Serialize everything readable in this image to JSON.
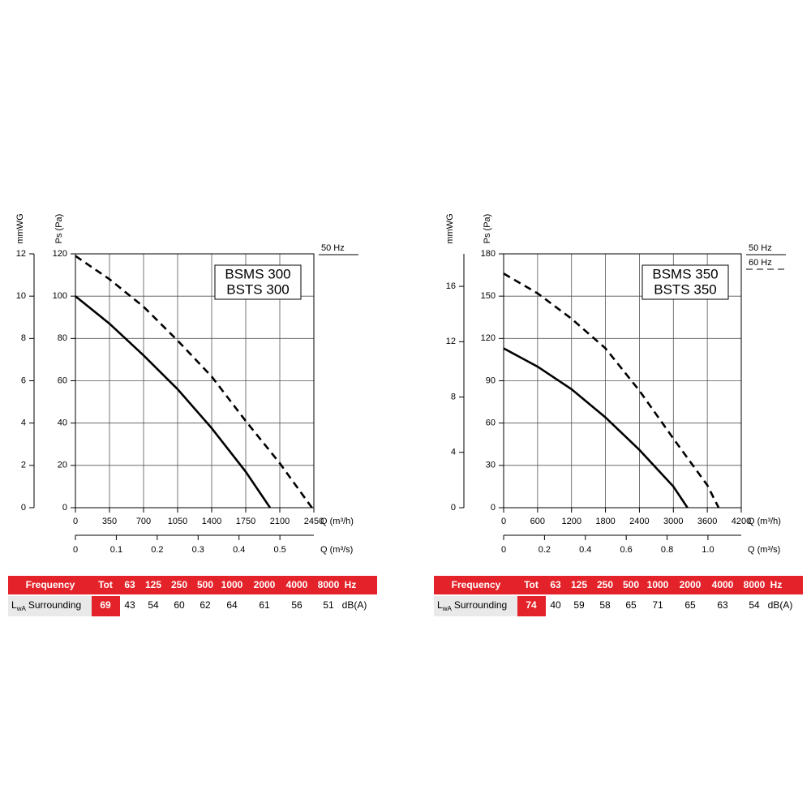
{
  "chart_data": [
    {
      "type": "line",
      "model_labels": [
        "BSMS 300",
        "BSTS 300"
      ],
      "y_label": "Ps (Pa)",
      "y2_label": "mmWG",
      "x_label": "Q (m³/h)",
      "x2_label": "Q (m³/s)",
      "xlim": [
        0,
        2450
      ],
      "xticks": [
        0,
        350,
        700,
        1050,
        1400,
        1750,
        2100,
        2450
      ],
      "x2lim": [
        0,
        0.583
      ],
      "x2ticks": [
        0,
        0.1,
        0.2,
        0.3,
        0.4,
        0.5
      ],
      "ylim": [
        0,
        120
      ],
      "yticks": [
        0,
        20,
        40,
        60,
        80,
        100,
        120
      ],
      "y2lim": [
        0,
        12
      ],
      "y2ticks": [
        0,
        2,
        4,
        6,
        8,
        10,
        12
      ],
      "grid": true,
      "series": [
        {
          "name": "50 Hz",
          "color": "#000000",
          "dash": "solid",
          "x": [
            0,
            350,
            700,
            1050,
            1400,
            1750,
            2000
          ],
          "values": [
            100,
            87,
            72,
            56,
            37.6,
            17,
            0
          ]
        },
        {
          "color": "#000000",
          "dash": "dashed",
          "x": [
            0,
            350,
            700,
            1050,
            1400,
            1750,
            2100,
            2430
          ],
          "values": [
            119,
            108,
            95,
            79,
            62,
            41,
            21,
            0
          ]
        }
      ],
      "table": {
        "header": [
          "Frequency",
          "Tot",
          "63",
          "125",
          "250",
          "500",
          "1000",
          "2000",
          "4000",
          "8000",
          "Hz"
        ],
        "label_main": "L",
        "label_sub": "wA",
        "label_text": "Surrounding",
        "total": 69,
        "values": [
          43,
          54,
          60,
          62,
          64,
          61,
          56,
          51
        ],
        "unit": "dB(A)"
      }
    },
    {
      "type": "line",
      "model_labels": [
        "BSMS 350",
        "BSTS 350"
      ],
      "y_label": "Ps (Pa)",
      "y2_label": "mmWG",
      "x_label": "Q (m³/h)",
      "x2_label": "Q (m³/s)",
      "xlim": [
        0,
        4200
      ],
      "xticks": [
        0,
        600,
        1200,
        1800,
        2400,
        3000,
        3600,
        4200
      ],
      "x2lim": [
        0,
        1.163
      ],
      "x2ticks": [
        0,
        0.2,
        0.4,
        0.6,
        0.8,
        {
          "value": 1.0,
          "label": "1.0"
        }
      ],
      "ylim": [
        0,
        180
      ],
      "yticks": [
        0,
        30,
        60,
        90,
        120,
        150,
        180
      ],
      "y2lim": [
        0,
        18.35
      ],
      "y2ticks": [
        0,
        4,
        8,
        12,
        16
      ],
      "grid": true,
      "series": [
        {
          "name": "50 Hz",
          "color": "#000000",
          "dash": "solid",
          "x": [
            0,
            600,
            1200,
            1800,
            2400,
            3000,
            3250
          ],
          "values": [
            113,
            100,
            84,
            64,
            41,
            15,
            0
          ]
        },
        {
          "name": "60 Hz",
          "color": "#000000",
          "dash": "dashed",
          "x": [
            0,
            600,
            1200,
            1800,
            2400,
            3000,
            3600,
            3800
          ],
          "values": [
            166,
            152,
            134,
            113,
            83,
            49,
            16,
            0
          ]
        }
      ],
      "table": {
        "header": [
          "Frequency",
          "Tot",
          "63",
          "125",
          "250",
          "500",
          "1000",
          "2000",
          "4000",
          "8000",
          "Hz"
        ],
        "label_main": "L",
        "label_sub": "wA",
        "label_text": "Surrounding",
        "total": 74,
        "values": [
          40,
          59,
          58,
          65,
          71,
          65,
          63,
          54
        ],
        "unit": "dB(A)"
      }
    }
  ]
}
